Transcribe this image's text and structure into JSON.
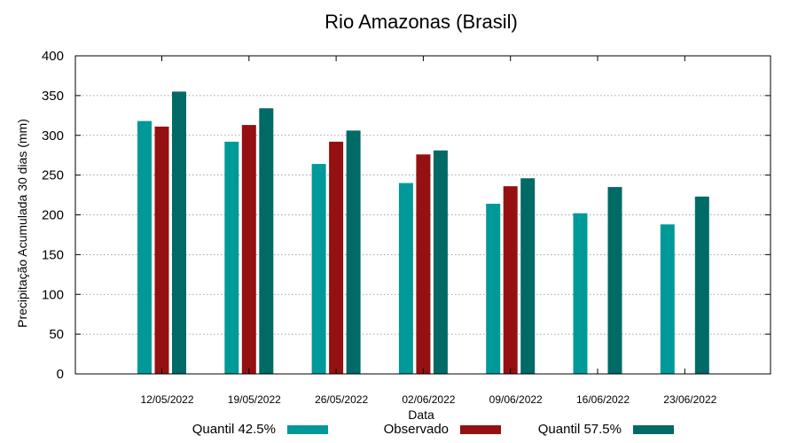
{
  "chart_data": {
    "type": "bar",
    "title": "Rio Amazonas (Brasil)",
    "xlabel": "Data",
    "ylabel": "Precipitação Acumulada 30 dias (mm)",
    "ylim": [
      0,
      400
    ],
    "yticks": [
      0,
      50,
      100,
      150,
      200,
      250,
      300,
      350,
      400
    ],
    "categories": [
      "12/05/2022",
      "19/05/2022",
      "26/05/2022",
      "02/06/2022",
      "09/06/2022",
      "16/06/2022",
      "23/06/2022"
    ],
    "series": [
      {
        "name": "Quantil 42.5%",
        "color": "#009999",
        "values": [
          318,
          292,
          264,
          240,
          214,
          202,
          188
        ]
      },
      {
        "name": "Observado",
        "color": "#951010",
        "values": [
          311,
          313,
          292,
          276,
          236,
          null,
          null
        ]
      },
      {
        "name": "Quantil 57.5%",
        "color": "#006a66",
        "values": [
          355,
          334,
          306,
          281,
          246,
          235,
          223
        ]
      }
    ],
    "legend_position": "bottom",
    "grid": true
  }
}
